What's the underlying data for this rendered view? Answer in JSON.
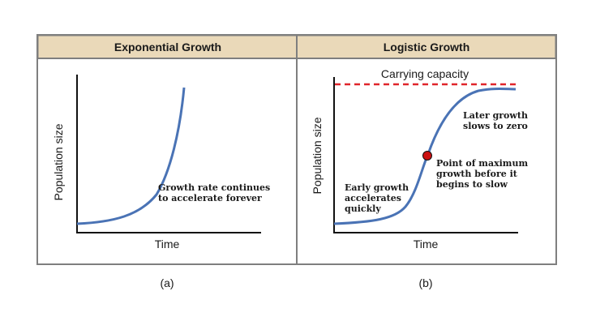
{
  "panels": [
    {
      "title": "Exponential Growth",
      "y_axis_label": "Population size",
      "x_axis_label": "Time",
      "annotation_lines": [
        "Growth rate continues",
        "to accelerate forever"
      ],
      "caption": "(a)"
    },
    {
      "title": "Logistic Growth",
      "y_axis_label": "Population size",
      "x_axis_label": "Time",
      "carrying_capacity_label": "Carrying capacity",
      "annotation_early_lines": [
        "Early growth",
        "accelerates",
        "quickly"
      ],
      "annotation_point_lines": [
        "Point of maximum",
        "growth before it",
        "begins to slow"
      ],
      "annotation_later_lines": [
        "Later growth",
        "slows to zero"
      ],
      "caption": "(b)"
    }
  ],
  "colors": {
    "header_fill": "#ead9b9",
    "border": "#7f7f7f",
    "curve": "#4a73b5",
    "capacity_line": "#e0252b",
    "max_point": "#cc1111",
    "text": "#1a1a1a"
  }
}
